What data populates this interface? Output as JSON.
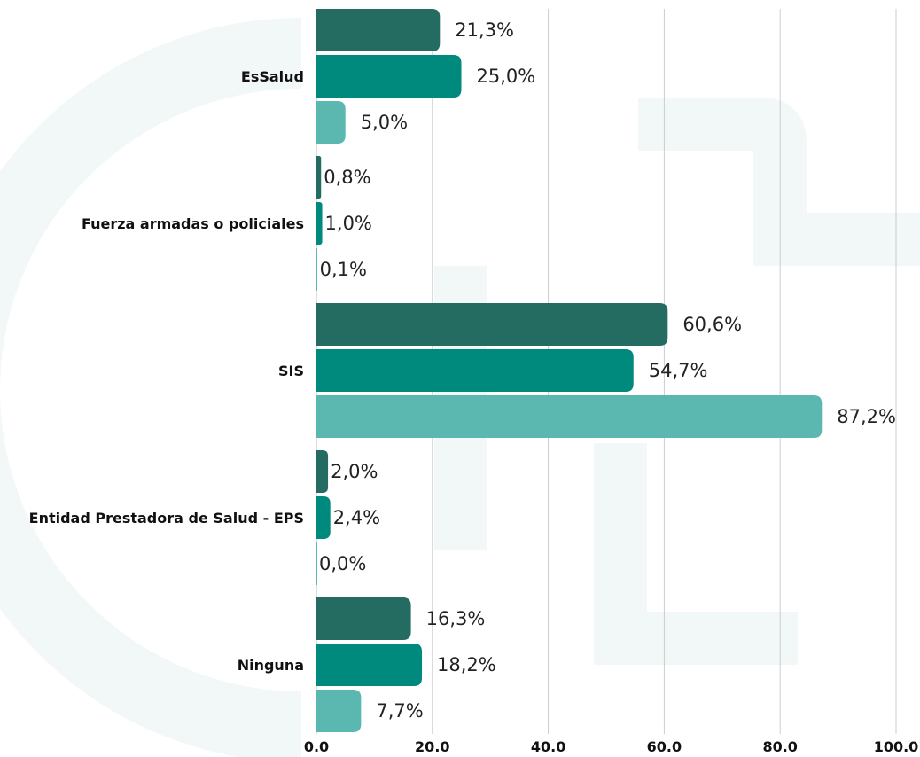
{
  "chart_data": {
    "type": "bar",
    "orientation": "horizontal",
    "categories": [
      "EsSalud",
      "Fuerza armadas o policiales",
      "SIS",
      "Entidad Prestadora de Salud - EPS",
      "Ninguna"
    ],
    "series": [
      {
        "values": [
          21.3,
          0.8,
          60.6,
          2.0,
          16.3
        ],
        "color": "#246b62"
      },
      {
        "values": [
          25.0,
          1.0,
          54.7,
          2.4,
          18.2
        ],
        "color": "#008a7e"
      },
      {
        "values": [
          5.0,
          0.1,
          87.2,
          0.0,
          7.7
        ],
        "color": "#5bb8b0"
      }
    ],
    "value_labels": [
      [
        "21,3%",
        "0,8%",
        "60,6%",
        "2,0%",
        "16,3%"
      ],
      [
        "25,0%",
        "1,0%",
        "54,7%",
        "2,4%",
        "18,2%"
      ],
      [
        "5,0%",
        "0,1%",
        "87,2%",
        "0,0%",
        "7,7%"
      ]
    ],
    "xlim": [
      0,
      100
    ],
    "x_ticks": [
      0,
      20,
      40,
      60,
      80,
      100
    ],
    "x_tick_labels": [
      "0.0",
      "20.0",
      "40.0",
      "60.0",
      "80.0",
      "100.0"
    ],
    "grid": "vertical",
    "xlabel": "",
    "ylabel": "",
    "title": ""
  }
}
